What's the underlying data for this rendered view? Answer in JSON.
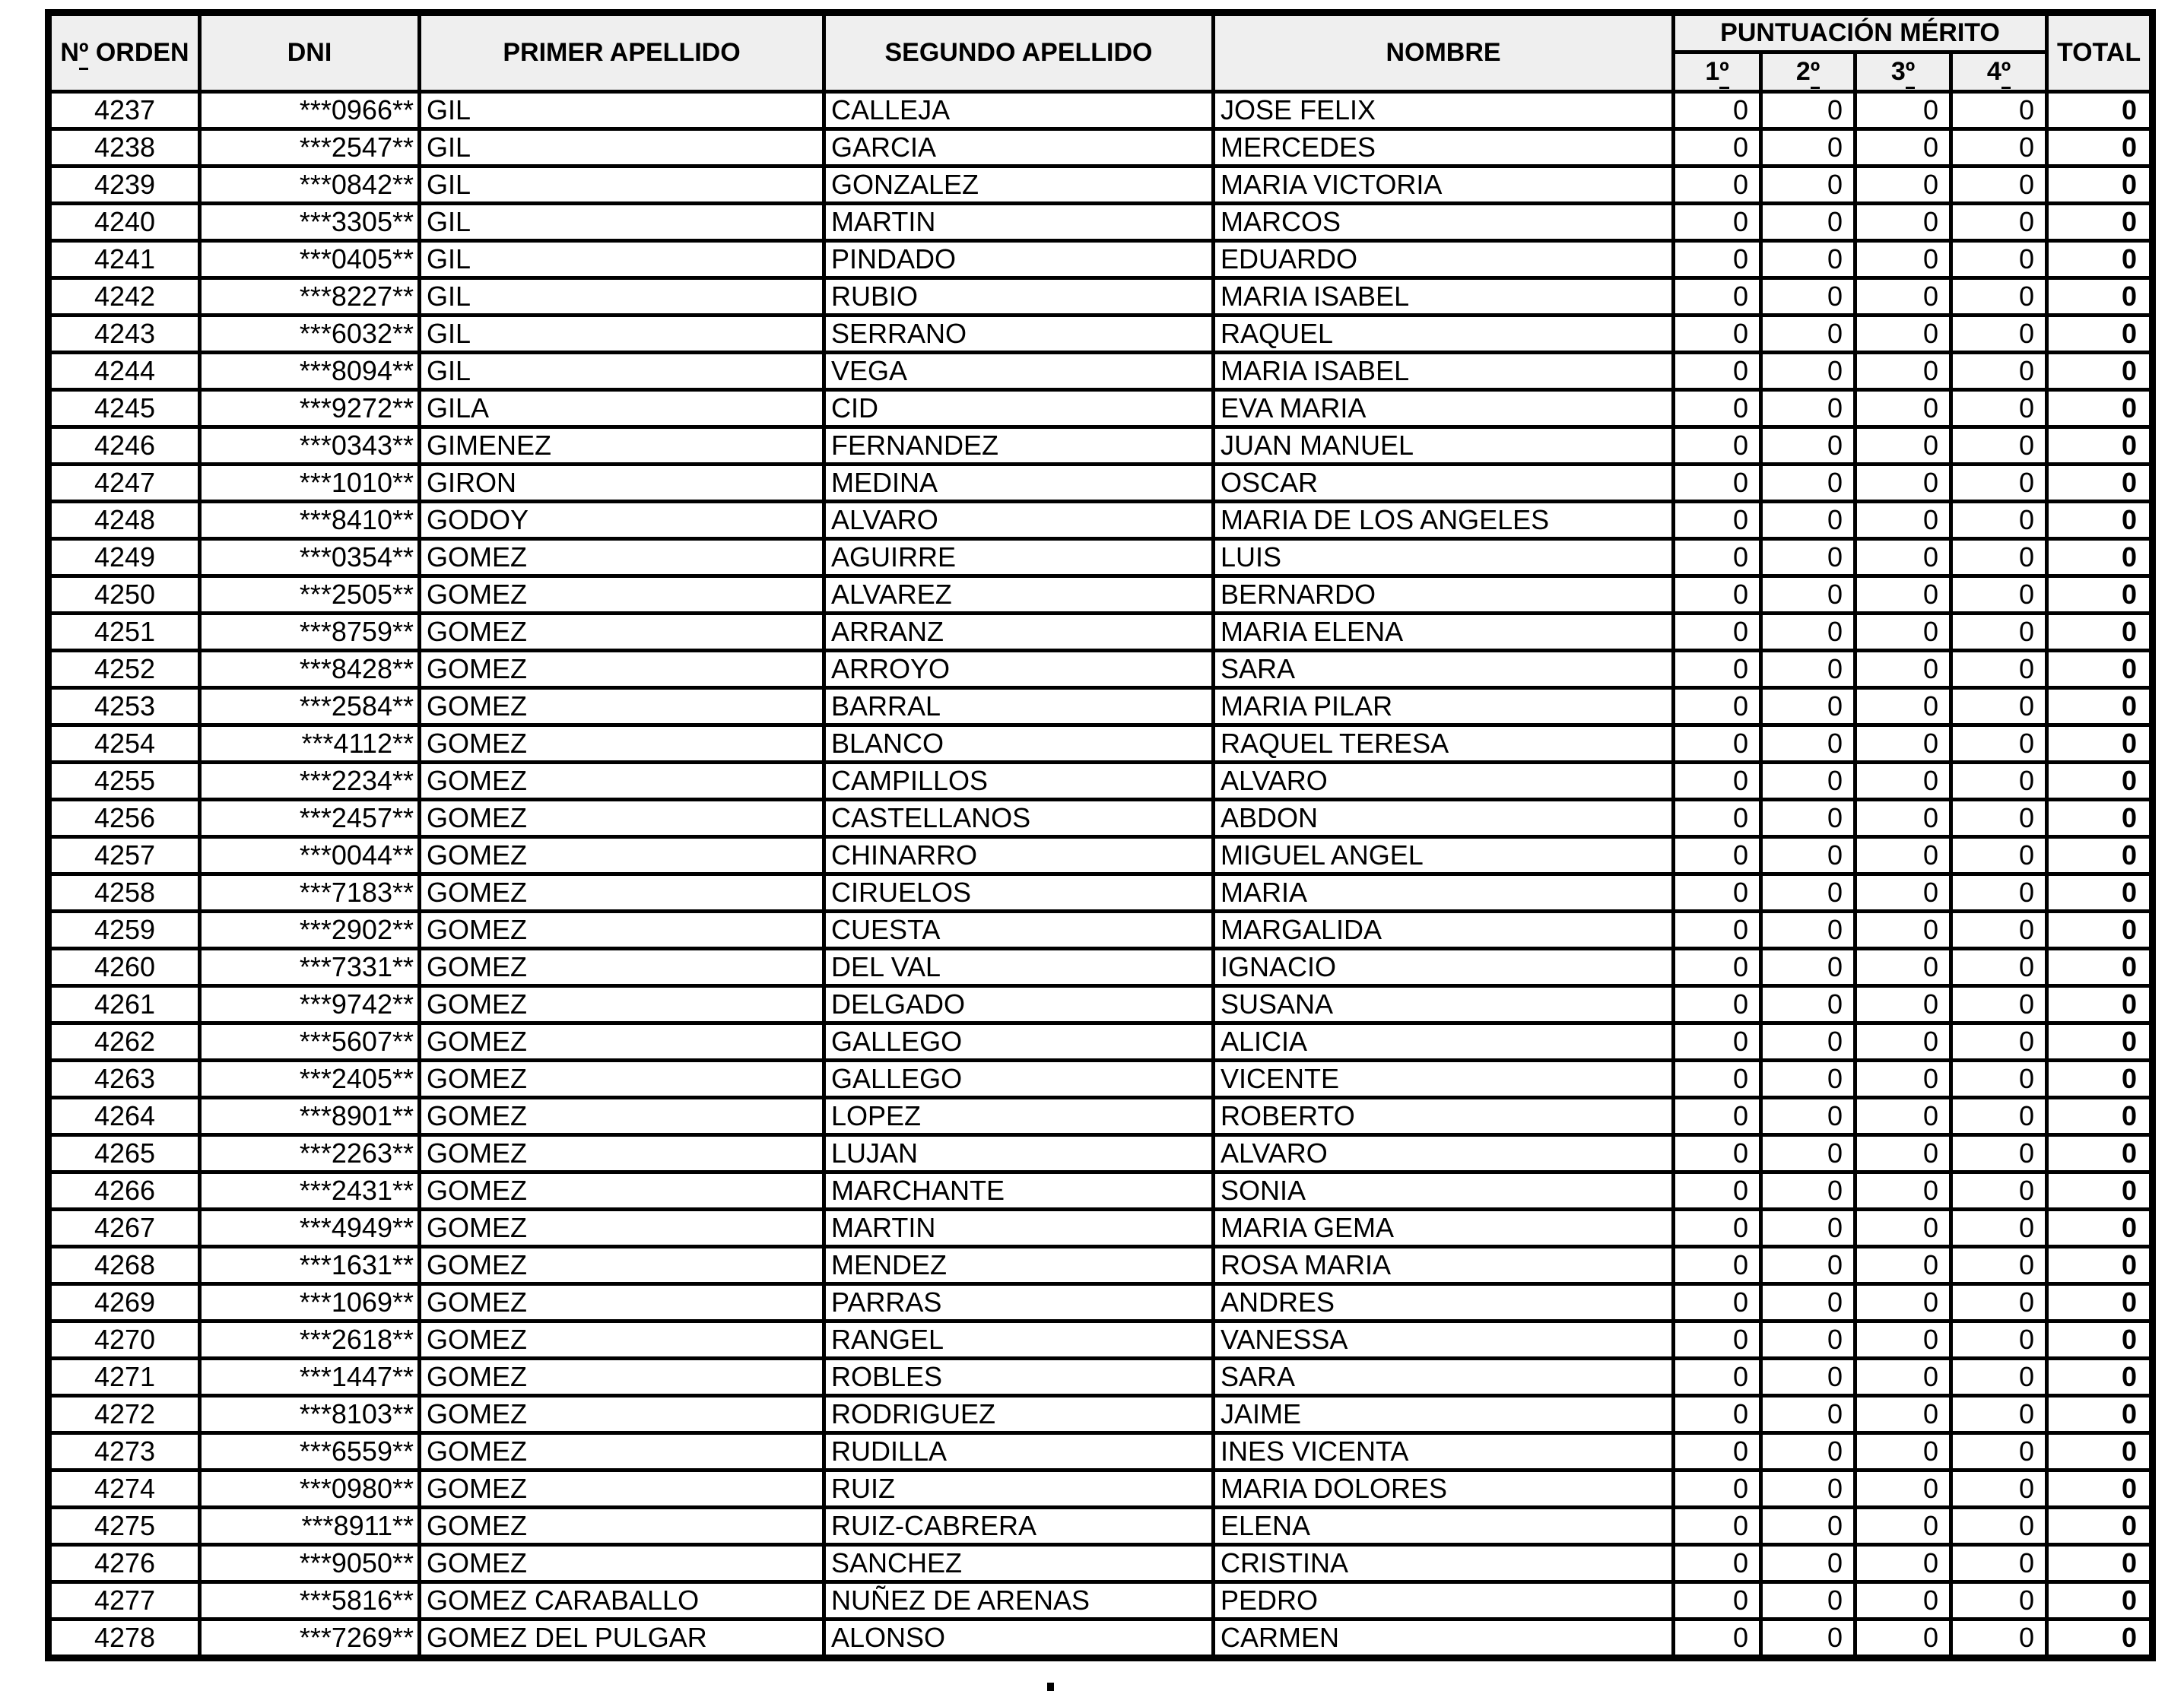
{
  "colors": {
    "page_bg": "#ffffff",
    "header_bg": "#efefef",
    "border": "#000000",
    "text": "#000000"
  },
  "table": {
    "columns": {
      "orden": "Nº ORDEN",
      "dni": "DNI",
      "primer_apellido": "PRIMER APELLIDO",
      "segundo_apellido": "SEGUNDO APELLIDO",
      "nombre": "NOMBRE",
      "puntuacion_merito": "PUNTUACIÓN MÉRITO",
      "merit_subcolumns": [
        "1º",
        "2º",
        "3º",
        "4º"
      ],
      "total": "TOTAL"
    },
    "rows": [
      [
        "4237",
        "***0966**",
        "GIL",
        "CALLEJA",
        "JOSE FELIX",
        "0",
        "0",
        "0",
        "0",
        "0"
      ],
      [
        "4238",
        "***2547**",
        "GIL",
        "GARCIA",
        "MERCEDES",
        "0",
        "0",
        "0",
        "0",
        "0"
      ],
      [
        "4239",
        "***0842**",
        "GIL",
        "GONZALEZ",
        "MARIA VICTORIA",
        "0",
        "0",
        "0",
        "0",
        "0"
      ],
      [
        "4240",
        "***3305**",
        "GIL",
        "MARTIN",
        "MARCOS",
        "0",
        "0",
        "0",
        "0",
        "0"
      ],
      [
        "4241",
        "***0405**",
        "GIL",
        "PINDADO",
        "EDUARDO",
        "0",
        "0",
        "0",
        "0",
        "0"
      ],
      [
        "4242",
        "***8227**",
        "GIL",
        "RUBIO",
        "MARIA ISABEL",
        "0",
        "0",
        "0",
        "0",
        "0"
      ],
      [
        "4243",
        "***6032**",
        "GIL",
        "SERRANO",
        "RAQUEL",
        "0",
        "0",
        "0",
        "0",
        "0"
      ],
      [
        "4244",
        "***8094**",
        "GIL",
        "VEGA",
        "MARIA ISABEL",
        "0",
        "0",
        "0",
        "0",
        "0"
      ],
      [
        "4245",
        "***9272**",
        "GILA",
        "CID",
        "EVA MARIA",
        "0",
        "0",
        "0",
        "0",
        "0"
      ],
      [
        "4246",
        "***0343**",
        "GIMENEZ",
        "FERNANDEZ",
        "JUAN MANUEL",
        "0",
        "0",
        "0",
        "0",
        "0"
      ],
      [
        "4247",
        "***1010**",
        "GIRON",
        "MEDINA",
        "OSCAR",
        "0",
        "0",
        "0",
        "0",
        "0"
      ],
      [
        "4248",
        "***8410**",
        "GODOY",
        "ALVARO",
        "MARIA DE LOS ANGELES",
        "0",
        "0",
        "0",
        "0",
        "0"
      ],
      [
        "4249",
        "***0354**",
        "GOMEZ",
        "AGUIRRE",
        "LUIS",
        "0",
        "0",
        "0",
        "0",
        "0"
      ],
      [
        "4250",
        "***2505**",
        "GOMEZ",
        "ALVAREZ",
        "BERNARDO",
        "0",
        "0",
        "0",
        "0",
        "0"
      ],
      [
        "4251",
        "***8759**",
        "GOMEZ",
        "ARRANZ",
        "MARIA ELENA",
        "0",
        "0",
        "0",
        "0",
        "0"
      ],
      [
        "4252",
        "***8428**",
        "GOMEZ",
        "ARROYO",
        "SARA",
        "0",
        "0",
        "0",
        "0",
        "0"
      ],
      [
        "4253",
        "***2584**",
        "GOMEZ",
        "BARRAL",
        "MARIA PILAR",
        "0",
        "0",
        "0",
        "0",
        "0"
      ],
      [
        "4254",
        "***4112**",
        "GOMEZ",
        "BLANCO",
        "RAQUEL TERESA",
        "0",
        "0",
        "0",
        "0",
        "0"
      ],
      [
        "4255",
        "***2234**",
        "GOMEZ",
        "CAMPILLOS",
        "ALVARO",
        "0",
        "0",
        "0",
        "0",
        "0"
      ],
      [
        "4256",
        "***2457**",
        "GOMEZ",
        "CASTELLANOS",
        "ABDON",
        "0",
        "0",
        "0",
        "0",
        "0"
      ],
      [
        "4257",
        "***0044**",
        "GOMEZ",
        "CHINARRO",
        "MIGUEL ANGEL",
        "0",
        "0",
        "0",
        "0",
        "0"
      ],
      [
        "4258",
        "***7183**",
        "GOMEZ",
        "CIRUELOS",
        "MARIA",
        "0",
        "0",
        "0",
        "0",
        "0"
      ],
      [
        "4259",
        "***2902**",
        "GOMEZ",
        "CUESTA",
        "MARGALIDA",
        "0",
        "0",
        "0",
        "0",
        "0"
      ],
      [
        "4260",
        "***7331**",
        "GOMEZ",
        "DEL VAL",
        "IGNACIO",
        "0",
        "0",
        "0",
        "0",
        "0"
      ],
      [
        "4261",
        "***9742**",
        "GOMEZ",
        "DELGADO",
        "SUSANA",
        "0",
        "0",
        "0",
        "0",
        "0"
      ],
      [
        "4262",
        "***5607**",
        "GOMEZ",
        "GALLEGO",
        "ALICIA",
        "0",
        "0",
        "0",
        "0",
        "0"
      ],
      [
        "4263",
        "***2405**",
        "GOMEZ",
        "GALLEGO",
        "VICENTE",
        "0",
        "0",
        "0",
        "0",
        "0"
      ],
      [
        "4264",
        "***8901**",
        "GOMEZ",
        "LOPEZ",
        "ROBERTO",
        "0",
        "0",
        "0",
        "0",
        "0"
      ],
      [
        "4265",
        "***2263**",
        "GOMEZ",
        "LUJAN",
        "ALVARO",
        "0",
        "0",
        "0",
        "0",
        "0"
      ],
      [
        "4266",
        "***2431**",
        "GOMEZ",
        "MARCHANTE",
        "SONIA",
        "0",
        "0",
        "0",
        "0",
        "0"
      ],
      [
        "4267",
        "***4949**",
        "GOMEZ",
        "MARTIN",
        "MARIA GEMA",
        "0",
        "0",
        "0",
        "0",
        "0"
      ],
      [
        "4268",
        "***1631**",
        "GOMEZ",
        "MENDEZ",
        "ROSA MARIA",
        "0",
        "0",
        "0",
        "0",
        "0"
      ],
      [
        "4269",
        "***1069**",
        "GOMEZ",
        "PARRAS",
        "ANDRES",
        "0",
        "0",
        "0",
        "0",
        "0"
      ],
      [
        "4270",
        "***2618**",
        "GOMEZ",
        "RANGEL",
        "VANESSA",
        "0",
        "0",
        "0",
        "0",
        "0"
      ],
      [
        "4271",
        "***1447**",
        "GOMEZ",
        "ROBLES",
        "SARA",
        "0",
        "0",
        "0",
        "0",
        "0"
      ],
      [
        "4272",
        "***8103**",
        "GOMEZ",
        "RODRIGUEZ",
        "JAIME",
        "0",
        "0",
        "0",
        "0",
        "0"
      ],
      [
        "4273",
        "***6559**",
        "GOMEZ",
        "RUDILLA",
        "INES VICENTA",
        "0",
        "0",
        "0",
        "0",
        "0"
      ],
      [
        "4274",
        "***0980**",
        "GOMEZ",
        "RUIZ",
        "MARIA DOLORES",
        "0",
        "0",
        "0",
        "0",
        "0"
      ],
      [
        "4275",
        "***8911**",
        "GOMEZ",
        "RUIZ-CABRERA",
        "ELENA",
        "0",
        "0",
        "0",
        "0",
        "0"
      ],
      [
        "4276",
        "***9050**",
        "GOMEZ",
        "SANCHEZ",
        "CRISTINA",
        "0",
        "0",
        "0",
        "0",
        "0"
      ],
      [
        "4277",
        "***5816**",
        "GOMEZ CARABALLO",
        "NUÑEZ DE ARENAS",
        "PEDRO",
        "0",
        "0",
        "0",
        "0",
        "0"
      ],
      [
        "4278",
        "***7269**",
        "GOMEZ DEL PULGAR",
        "ALONSO",
        "CARMEN",
        "0",
        "0",
        "0",
        "0",
        "0"
      ]
    ]
  }
}
